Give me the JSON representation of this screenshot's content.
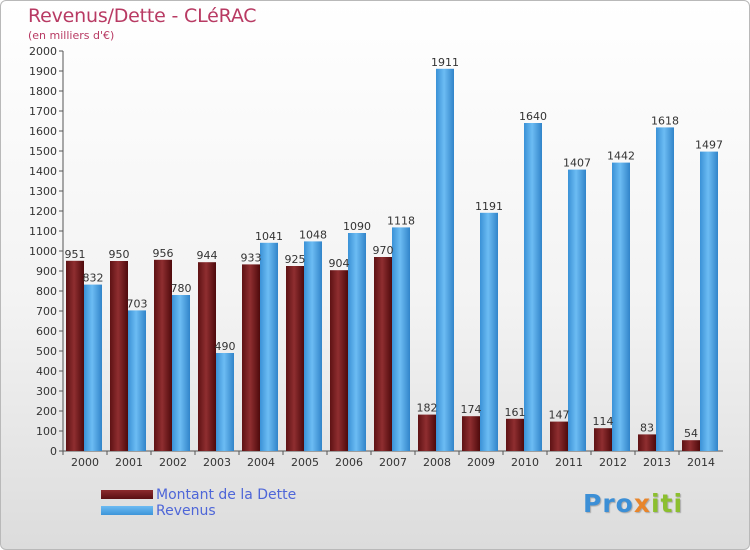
{
  "title": "Revenus/Dette - CLéRAC",
  "subtitle": "(en milliers d'€)",
  "legend": [
    {
      "label": "Montant de la Dette",
      "color": "#6b1a1c"
    },
    {
      "label": "Revenus",
      "color": "#4aa3e6"
    }
  ],
  "logo": {
    "part1": "Pro",
    "part2": "x",
    "part3": "iti"
  },
  "chart_data": {
    "type": "bar",
    "categories": [
      "2000",
      "2001",
      "2002",
      "2003",
      "2004",
      "2005",
      "2006",
      "2007",
      "2008",
      "2009",
      "2010",
      "2011",
      "2012",
      "2013",
      "2014"
    ],
    "series": [
      {
        "name": "Montant de la Dette",
        "values": [
          951,
          950,
          956,
          944,
          933,
          925,
          904,
          970,
          182,
          174,
          161,
          147,
          114,
          83,
          54
        ]
      },
      {
        "name": "Revenus",
        "values": [
          832,
          703,
          780,
          490,
          1041,
          1048,
          1090,
          1118,
          1911,
          1191,
          1640,
          1407,
          1442,
          1618,
          1497
        ]
      }
    ],
    "ylim": [
      0,
      2000
    ],
    "yticks": [
      0,
      100,
      200,
      300,
      400,
      500,
      600,
      700,
      800,
      900,
      1000,
      1100,
      1200,
      1300,
      1400,
      1500,
      1600,
      1700,
      1800,
      1900,
      2000
    ],
    "grid": false,
    "legend_position": "bottom-left"
  }
}
